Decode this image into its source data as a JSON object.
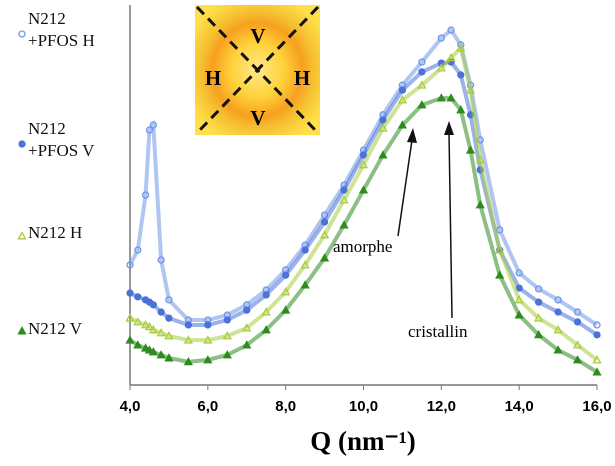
{
  "chart_data": {
    "type": "scatter",
    "xlabel": "Q (nm⁻¹)",
    "x": [
      4.0,
      4.2,
      4.4,
      4.5,
      4.6,
      4.8,
      5.0,
      5.5,
      6.0,
      6.5,
      7.0,
      7.5,
      8.0,
      8.5,
      9.0,
      9.5,
      10.0,
      10.5,
      11.0,
      11.5,
      12.0,
      12.25,
      12.5,
      12.75,
      13.0,
      13.5,
      14.0,
      14.5,
      15.0,
      15.5,
      16.0
    ],
    "xlim": [
      4,
      16
    ],
    "xticks": [
      {
        "value": 4,
        "label": "4,0"
      },
      {
        "value": 6,
        "label": "6,0"
      },
      {
        "value": 8,
        "label": "8,0"
      },
      {
        "value": 10,
        "label": "10,0"
      },
      {
        "value": 12,
        "label": "12,0"
      },
      {
        "value": 14,
        "label": "14,0"
      },
      {
        "value": 16,
        "label": "16,0"
      }
    ],
    "ylim": [
      0,
      100
    ],
    "series": [
      {
        "name": "N212 +PFOS H",
        "color": "#6f95e8",
        "marker": "circle-open",
        "values": [
          31.6,
          35.5,
          50,
          67.1,
          68.4,
          32.9,
          22.4,
          17.1,
          17.1,
          18.4,
          21.1,
          25,
          30.3,
          36.8,
          44.7,
          52.6,
          61.8,
          71.1,
          78.9,
          85,
          91.3,
          93.4,
          89.5,
          78.9,
          64.5,
          40.8,
          29.5,
          25.3,
          22.4,
          19.2,
          15.8
        ]
      },
      {
        "name": "N212 +PFOS V",
        "color": "#4a72d8",
        "marker": "circle-filled",
        "values": [
          24.2,
          23.2,
          22.4,
          21.8,
          21.1,
          19.2,
          17.6,
          15.8,
          15.8,
          17.1,
          19.7,
          23.7,
          28.9,
          35.5,
          42.9,
          51.3,
          60.5,
          69.7,
          77.6,
          82.4,
          84.7,
          85,
          81.6,
          71.1,
          56.6,
          35.5,
          25.5,
          21.8,
          19.2,
          16.6,
          13.2
        ]
      },
      {
        "name": "N212 H",
        "color": "#a8cc3c",
        "marker": "triangle-open",
        "values": [
          17.6,
          16.6,
          15.8,
          15.3,
          14.5,
          13.7,
          12.9,
          11.8,
          11.8,
          12.9,
          15,
          19.2,
          24.5,
          31.6,
          39.5,
          48.7,
          57.9,
          67.6,
          75,
          78.9,
          83.4,
          86.1,
          88.7,
          77.6,
          59.2,
          35.5,
          22.4,
          17.6,
          14.5,
          10.5,
          6.6
        ]
      },
      {
        "name": "N212 V",
        "color": "#2e8b1e",
        "marker": "triangle-filled",
        "values": [
          11.8,
          10.5,
          9.7,
          9.2,
          8.7,
          7.9,
          7.1,
          6.1,
          6.6,
          7.9,
          10.5,
          14.5,
          19.7,
          26.3,
          33.4,
          42.1,
          51.3,
          60.5,
          68.4,
          73.7,
          75.5,
          75.5,
          72.4,
          61.8,
          47.4,
          28.9,
          18.4,
          13.2,
          9.2,
          6.6,
          3.4
        ]
      }
    ],
    "annotations": [
      "amorphe",
      "cristallin"
    ],
    "inset_labels": [
      "V",
      "H",
      "H",
      "V"
    ]
  }
}
